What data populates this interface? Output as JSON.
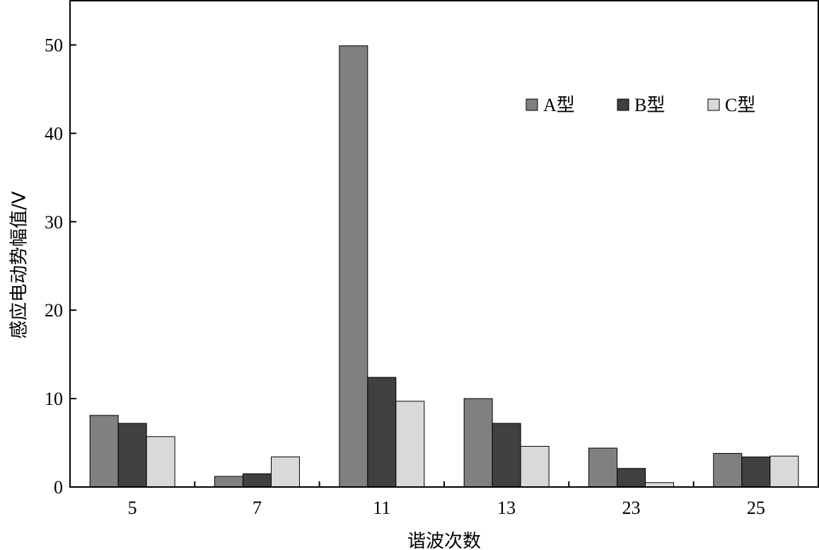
{
  "chart_data": {
    "type": "bar",
    "categories": [
      "5",
      "7",
      "11",
      "13",
      "23",
      "25"
    ],
    "series": [
      {
        "name": "A型",
        "color": "#808080",
        "values": [
          8.1,
          1.2,
          49.9,
          10.0,
          4.4,
          3.8
        ]
      },
      {
        "name": "B型",
        "color": "#404040",
        "values": [
          7.2,
          1.5,
          12.4,
          7.2,
          2.1,
          3.4
        ]
      },
      {
        "name": "C型",
        "color": "#d9d9d9",
        "values": [
          5.7,
          3.4,
          9.7,
          4.6,
          0.5,
          3.5
        ]
      }
    ],
    "xlabel": "谐波次数",
    "ylabel": "感应电动势幅值/V",
    "ylim": [
      0,
      55
    ],
    "yticks": [
      0,
      10,
      20,
      30,
      40,
      50
    ],
    "grid": false,
    "legend_position": "top-right"
  }
}
